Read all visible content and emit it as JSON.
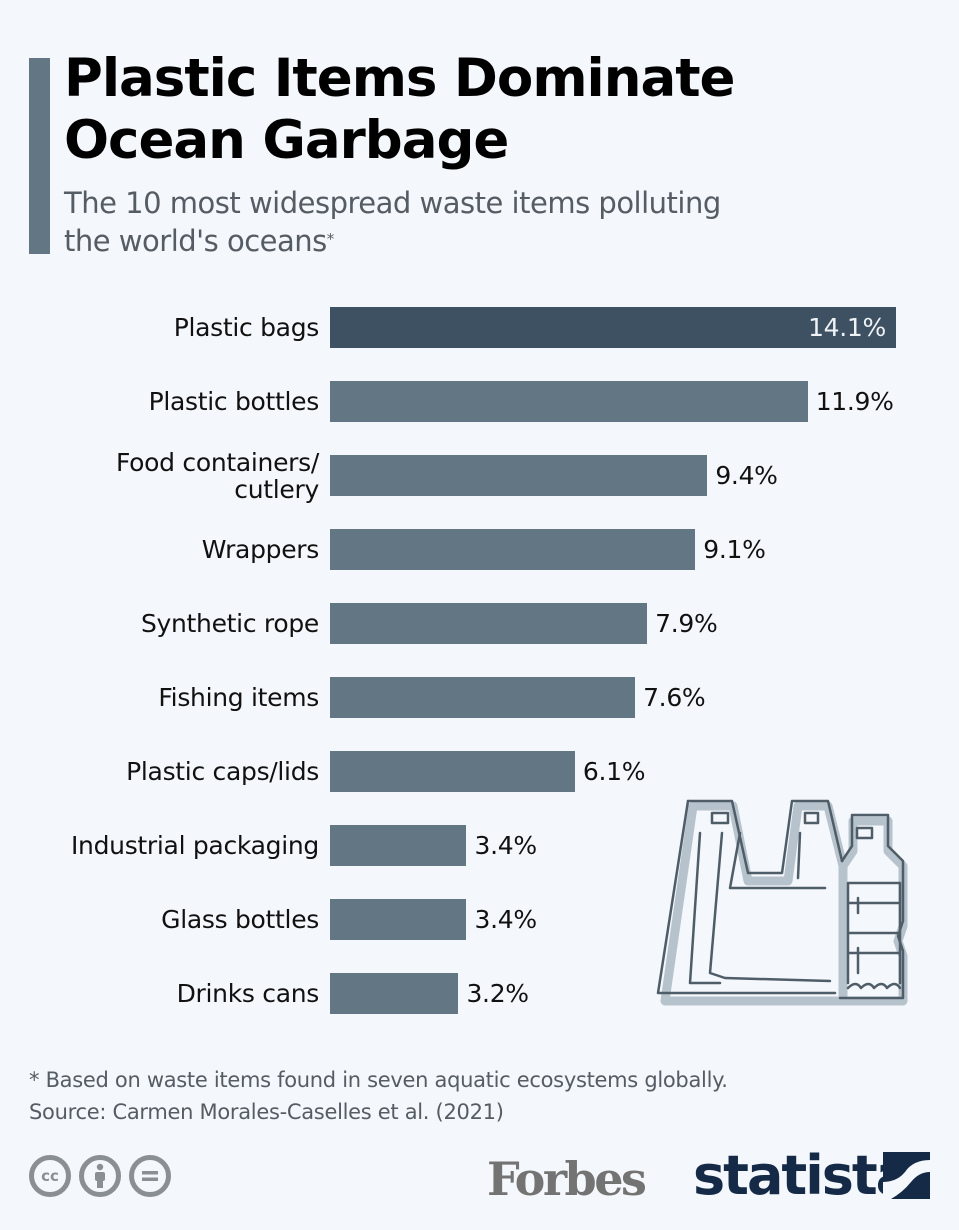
{
  "header": {
    "title_line1": "Plastic Items Dominate",
    "title_line2": "Ocean Garbage",
    "subtitle_line1": "The 10 most widespread waste items polluting",
    "subtitle_line2": "the world's oceans",
    "subtitle_marker": "*"
  },
  "colors": {
    "background": "#f4f7fb",
    "bar": "#637684",
    "bar_highlight": "#3d5163",
    "accent": "#637684",
    "statista_navy": "#142a46"
  },
  "chart_data": {
    "type": "bar",
    "orientation": "horizontal",
    "title": "Plastic Items Dominate Ocean Garbage",
    "subtitle": "The 10 most widespread waste items polluting the world's oceans*",
    "xlabel": "",
    "ylabel": "",
    "unit": "%",
    "categories": [
      "Plastic bags",
      "Plastic bottles",
      "Food containers/\ncutlery",
      "Wrappers",
      "Synthetic rope",
      "Fishing items",
      "Plastic caps/lids",
      "Industrial packaging",
      "Glass bottles",
      "Drinks cans"
    ],
    "values": [
      14.1,
      11.9,
      9.4,
      9.1,
      7.9,
      7.6,
      6.1,
      3.4,
      3.4,
      3.2
    ],
    "value_labels": [
      "14.1%",
      "11.9%",
      "9.4%",
      "9.1%",
      "7.9%",
      "7.6%",
      "6.1%",
      "3.4%",
      "3.4%",
      "3.2%"
    ],
    "highlighted_index": 0,
    "grid": false,
    "legend": null
  },
  "illustration": {
    "icon": "plastic-bag-and-bottle-icon"
  },
  "footer": {
    "note": "* Based on waste items found in seven aquatic ecosystems globally.",
    "source": "Source: Carmen Morales-Caselles et al. (2021)",
    "license_icons": [
      "cc-icon",
      "attribution-icon",
      "no-derivatives-icon"
    ],
    "cc_text": "cc",
    "brand_forbes": "Forbes",
    "brand_statista": "statista"
  }
}
